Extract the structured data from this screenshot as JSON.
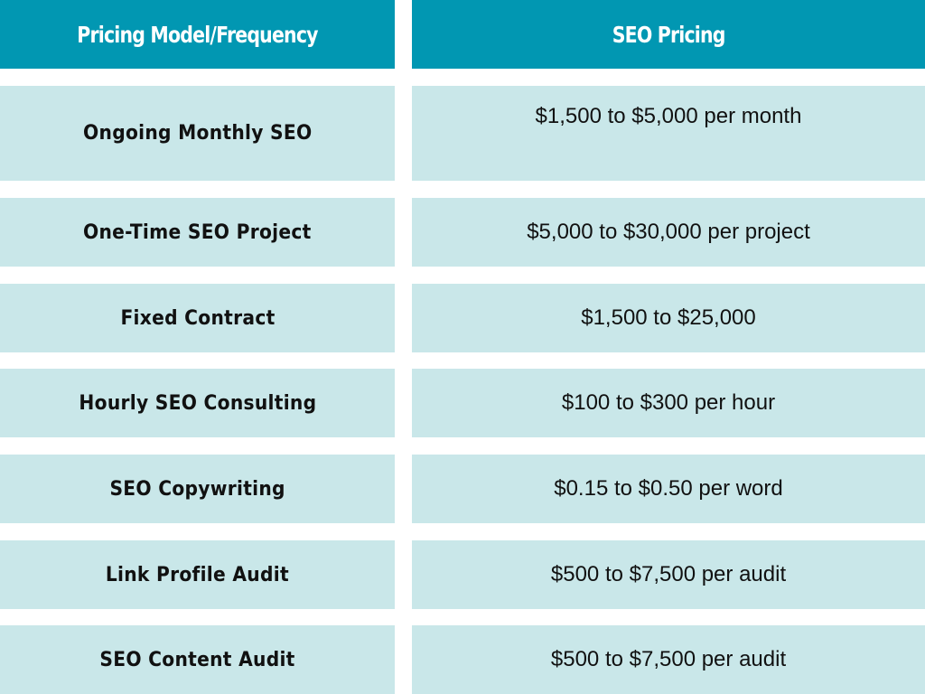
{
  "header": {
    "col1": "Pricing Model/Frequency",
    "col2": "SEO Pricing"
  },
  "rows": [
    {
      "model": "Ongoing Monthly SEO",
      "price": "$1,500 to $5,000 per month"
    },
    {
      "model": "One-Time SEO Project",
      "price": "$5,000 to $30,000 per project"
    },
    {
      "model": "Fixed Contract",
      "price": "$1,500 to $25,000"
    },
    {
      "model": "Hourly SEO Consulting",
      "price": "$100 to $300 per hour"
    },
    {
      "model": "SEO Copywriting",
      "price": "$0.15 to $0.50 per word"
    },
    {
      "model": "Link Profile Audit",
      "price": "$500 to $7,500 per audit"
    },
    {
      "model": "SEO Content Audit",
      "price": "$500 to $7,500 per audit"
    }
  ],
  "colors": {
    "header_bg": "#0197b2",
    "row_bg": "#c9e7e9",
    "header_text": "#ffffff",
    "body_text": "#111111"
  }
}
